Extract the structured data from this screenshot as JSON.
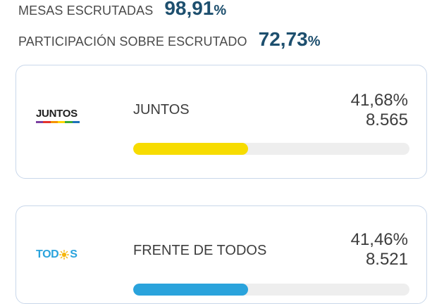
{
  "summary": {
    "mesas_label": "MESAS ESCRUTADAS",
    "mesas_value": "98,91",
    "mesas_pct_sign": "%",
    "participacion_label": "PARTICIPACIÓN SOBRE ESCRUTADO",
    "participacion_value": "72,73",
    "participacion_pct_sign": "%"
  },
  "results": [
    {
      "logo_text": "JUNTOS",
      "logo_icon": "juntos-rainbow-logo",
      "name": "JUNTOS",
      "percent": "41,68%",
      "votes": "8.565",
      "share": 41.68,
      "bar_color": "#f7dc00"
    },
    {
      "logo_text_a": "TOD",
      "logo_text_b": "S",
      "logo_icon": "sun-icon",
      "name": "FRENTE DE TODOS",
      "percent": "41,46%",
      "votes": "8.521",
      "share": 41.46,
      "bar_color": "#2aa3dc"
    }
  ],
  "colors": {
    "accent": "#1d4f6e",
    "card_border": "#c9d7ea",
    "bar_track": "#eeeeee",
    "rainbow": [
      "#7b3fa0",
      "#e4322b",
      "#f39200",
      "#ffd500",
      "#3aaa35",
      "#1d71b8"
    ],
    "sun": "#f6b60c"
  }
}
